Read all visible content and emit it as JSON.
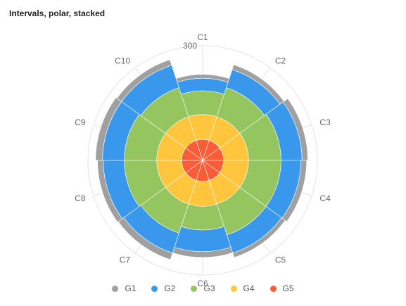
{
  "title": "Intervals, polar, stacked",
  "chart_data": {
    "type": "bar",
    "coordinate": "polar",
    "stacked": true,
    "title": "Intervals, polar, stacked",
    "categories": [
      "C1",
      "C2",
      "C3",
      "C4",
      "C5",
      "C6",
      "C7",
      "C8",
      "C9",
      "C10"
    ],
    "radial_max": 300,
    "radial_tick_labels": [
      "300"
    ],
    "series": [
      {
        "name": "G5",
        "color": "#fa5d37",
        "values": [
          55,
          55,
          55,
          55,
          55,
          55,
          55,
          55,
          55,
          55
        ]
      },
      {
        "name": "G4",
        "color": "#ffc53d",
        "values": [
          65,
          65,
          65,
          65,
          65,
          65,
          65,
          65,
          65,
          65
        ]
      },
      {
        "name": "G3",
        "color": "#95c55f",
        "values": [
          62,
          80,
          85,
          85,
          85,
          62,
          80,
          85,
          85,
          80
        ]
      },
      {
        "name": "G2",
        "color": "#3a98ec",
        "values": [
          33,
          50,
          55,
          52,
          50,
          57,
          55,
          55,
          57,
          62
        ]
      },
      {
        "name": "G1",
        "color": "#a0a0a0",
        "values": [
          10,
          13,
          15,
          15,
          12,
          15,
          18,
          15,
          18,
          15
        ]
      }
    ],
    "legend": [
      "G1",
      "G2",
      "G3",
      "G4",
      "G5"
    ],
    "legend_position": "bottom",
    "grid": true
  }
}
